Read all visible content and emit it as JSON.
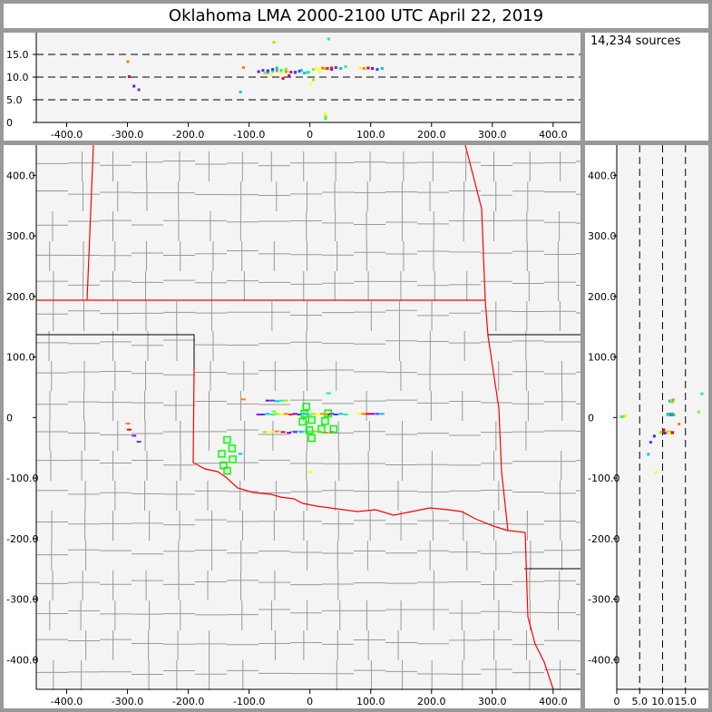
{
  "title": "Oklahoma LMA   2000-2100 UTC  April 22, 2019",
  "info": {
    "source_count": "14,234 sources"
  },
  "colors": {
    "panel_bg": "#f4f4f4",
    "frame": "#999999",
    "ok_border": "#ff0000",
    "county": "#999999",
    "station": "#00ff00"
  },
  "chart_data": [
    {
      "type": "scatter",
      "name_view": "altitude-vs-east",
      "xlim": [
        -450,
        445
      ],
      "ylim": [
        0,
        19.8
      ],
      "xticks": [
        "-400.0",
        "-300.0",
        "-200.0",
        "-100.0",
        "0",
        "100.0",
        "200.0",
        "300.0",
        "400.0"
      ],
      "yticks": [
        "0",
        "5.0",
        "10.0",
        "15.0"
      ],
      "grid": "dashed horizontal at 5, 10, 15"
    },
    {
      "type": "scatter",
      "name_view": "plan-view",
      "xlim": [
        -450,
        445
      ],
      "ylim": [
        -449,
        450
      ],
      "xticks": [
        "-400.0",
        "-300.0",
        "-200.0",
        "-100.0",
        "0",
        "100.0",
        "200.0",
        "300.0",
        "400.0"
      ],
      "yticks": [
        "400.0",
        "300.0",
        "200.0",
        "100.0",
        "0",
        "-100.0",
        "-200.0",
        "-300.0",
        "-400.0"
      ],
      "stations": [
        [
          -6,
          18
        ],
        [
          -9,
          6
        ],
        [
          -12,
          -7
        ],
        [
          3,
          -4
        ],
        [
          30,
          7
        ],
        [
          25,
          -6
        ],
        [
          -1,
          -21
        ],
        [
          3,
          -34
        ],
        [
          19,
          -19
        ],
        [
          39,
          -19
        ],
        [
          -136,
          -37
        ],
        [
          -128,
          -51
        ],
        [
          -145,
          -60
        ],
        [
          -127,
          -69
        ],
        [
          -142,
          -79
        ],
        [
          -136,
          -88
        ]
      ]
    },
    {
      "type": "scatter",
      "name_view": "north-vs-altitude",
      "xlim": [
        0,
        20
      ],
      "ylim": [
        -449,
        450
      ],
      "xticks": [
        "0",
        "5.0",
        "10.0",
        "15.0"
      ],
      "yticks": [
        "400.0",
        "300.0",
        "200.0",
        "100.0",
        "0",
        "-100.0",
        "-200.0",
        "-300.0",
        "-400.0"
      ],
      "grid": "dashed vertical at 5, 10, 15"
    }
  ],
  "sources": [
    [
      -85,
      5,
      11.3
    ],
    [
      -78,
      5,
      11.6
    ],
    [
      -70,
      6,
      11.1
    ],
    [
      -62,
      5,
      11.4
    ],
    [
      -55,
      6,
      12.2
    ],
    [
      -48,
      5,
      11.0
    ],
    [
      -40,
      6,
      11.3
    ],
    [
      -32,
      5,
      11.2
    ],
    [
      -25,
      6,
      11.1
    ],
    [
      -18,
      5,
      11.4
    ],
    [
      -10,
      6,
      11.0
    ],
    [
      -3,
      5,
      11.2
    ],
    [
      5,
      6,
      11.8
    ],
    [
      12,
      5,
      11.9
    ],
    [
      20,
      6,
      12.1
    ],
    [
      28,
      5,
      12.0
    ],
    [
      35,
      6,
      11.8
    ],
    [
      42,
      5,
      12.2
    ],
    [
      50,
      6,
      12.0
    ],
    [
      58,
      5,
      12.4
    ],
    [
      -75,
      -24,
      11.0
    ],
    [
      -65,
      -24,
      10.6
    ],
    [
      -55,
      -23,
      11.5
    ],
    [
      -45,
      -24,
      9.8
    ],
    [
      -35,
      -25,
      10.4
    ],
    [
      -25,
      -24,
      11.2
    ],
    [
      -15,
      -24,
      11.6
    ],
    [
      -5,
      -23,
      11.1
    ],
    [
      5,
      -24,
      9.5
    ],
    [
      15,
      -24,
      11.3
    ],
    [
      25,
      -25,
      12.0
    ],
    [
      35,
      -24,
      12.1
    ],
    [
      -70,
      28,
      11.5
    ],
    [
      -62,
      28,
      11.8
    ],
    [
      -55,
      27,
      12.0
    ],
    [
      -48,
      28,
      11.6
    ],
    [
      -40,
      28,
      11.9
    ],
    [
      82,
      6,
      12.2
    ],
    [
      88,
      6,
      12.0
    ],
    [
      95,
      6,
      12.1
    ],
    [
      102,
      6,
      12.0
    ],
    [
      110,
      6,
      11.8
    ],
    [
      118,
      6,
      12.0
    ],
    [
      25,
      2,
      1.0
    ],
    [
      25,
      3,
      1.5
    ],
    [
      24,
      4,
      2.0
    ],
    [
      -300,
      -10,
      13.5
    ],
    [
      -298,
      -20,
      10.2
    ],
    [
      -290,
      -30,
      8.1
    ],
    [
      -282,
      -40,
      7.3
    ],
    [
      -115,
      -60,
      6.8
    ],
    [
      30,
      40,
      18.5
    ],
    [
      -60,
      10,
      17.8
    ],
    [
      0,
      -90,
      8.5
    ],
    [
      -110,
      30,
      12.2
    ]
  ]
}
